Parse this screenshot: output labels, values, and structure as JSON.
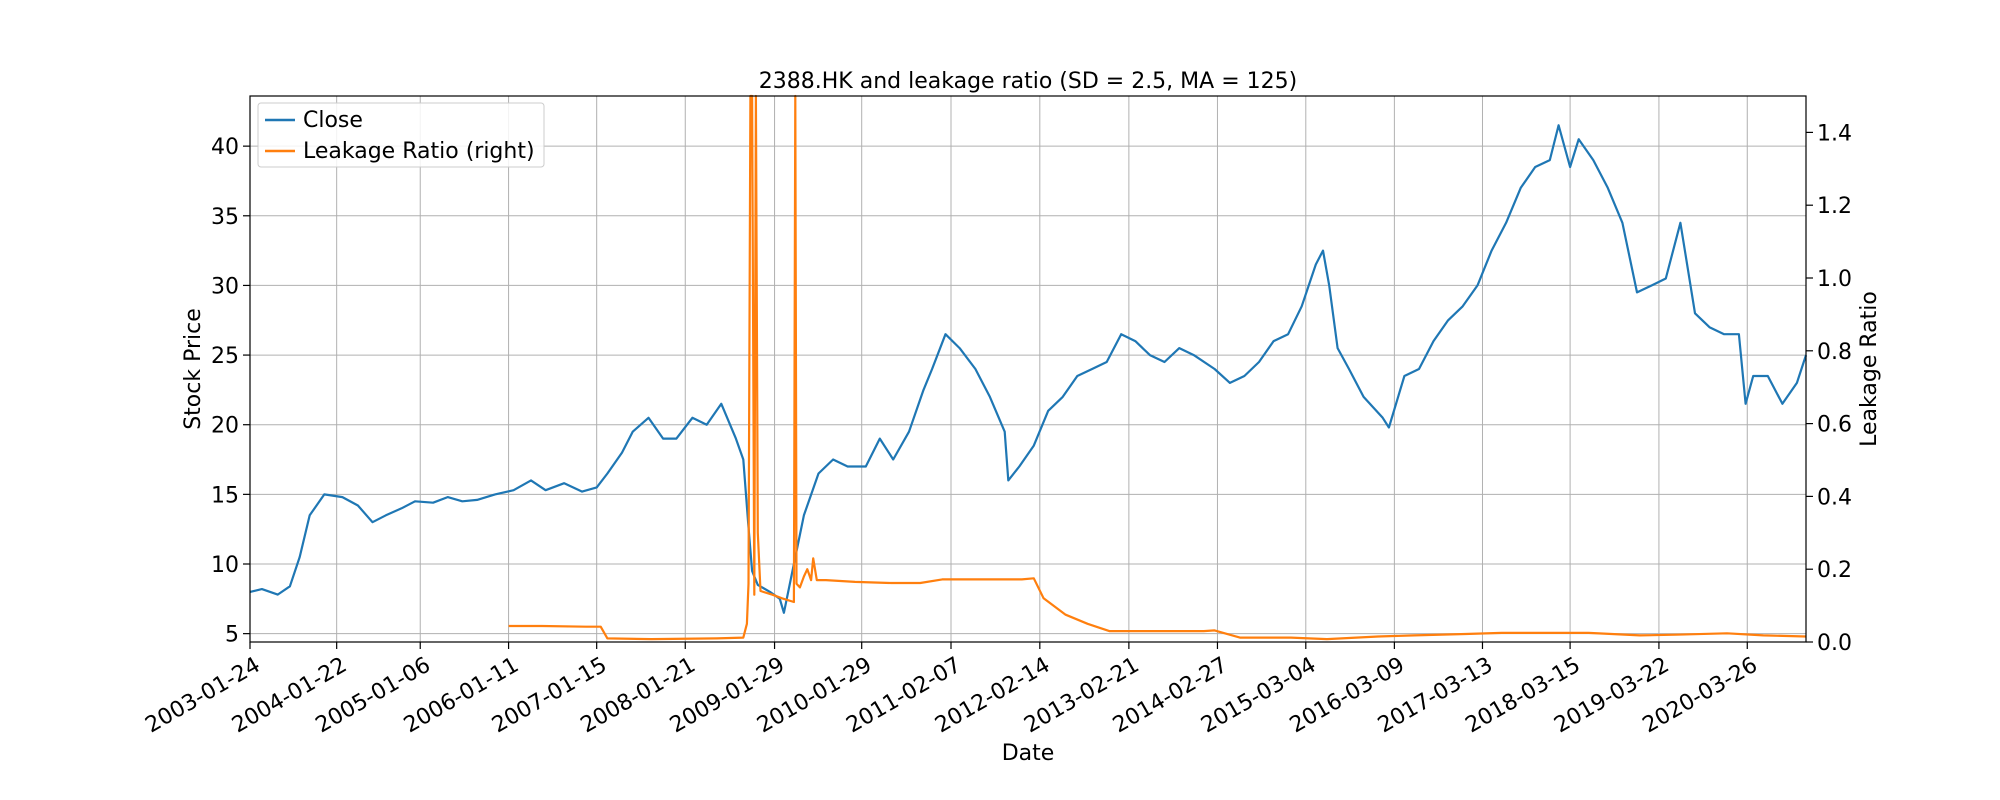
{
  "chart_data": {
    "type": "line",
    "title": "2388.HK and leakage ratio (SD = 2.5, MA = 125)",
    "xlabel": "Date",
    "ylabel": "Stock Price",
    "ylabel_right": "Leakage Ratio",
    "xlim": [
      "2003-01-24",
      "2020-11-27"
    ],
    "ylim": [
      4.4,
      43.6
    ],
    "ylim_right": [
      0,
      1.5
    ],
    "grid": true,
    "legend_position": "upper-left",
    "x_ticks": [
      "2003-01-24",
      "2004-01-22",
      "2005-01-06",
      "2006-01-11",
      "2007-01-15",
      "2008-01-21",
      "2009-01-29",
      "2010-01-29",
      "2011-02-07",
      "2012-02-14",
      "2013-02-21",
      "2014-02-27",
      "2015-03-04",
      "2016-03-09",
      "2017-03-13",
      "2018-03-15",
      "2019-03-22",
      "2020-03-26"
    ],
    "y_ticks": [
      5,
      10,
      15,
      20,
      25,
      30,
      35,
      40
    ],
    "y_ticks_right": [
      "0.0",
      "0.2",
      "0.4",
      "0.6",
      "0.8",
      "1.0",
      "1.2",
      "1.4"
    ],
    "series": [
      {
        "name": "Close",
        "axis": "left",
        "color": "#1f77b4",
        "x": [
          "2003-01-24",
          "2003-03-15",
          "2003-05-20",
          "2003-07-10",
          "2003-08-20",
          "2003-10-01",
          "2003-12-01",
          "2004-02-15",
          "2004-04-20",
          "2004-06-20",
          "2004-08-15",
          "2004-10-20",
          "2004-12-15",
          "2005-03-01",
          "2005-05-01",
          "2005-07-01",
          "2005-09-01",
          "2005-11-15",
          "2006-02-01",
          "2006-04-15",
          "2006-06-15",
          "2006-09-01",
          "2006-11-15",
          "2007-01-15",
          "2007-03-01",
          "2007-05-01",
          "2007-06-15",
          "2007-08-20",
          "2007-10-20",
          "2007-12-15",
          "2008-02-20",
          "2008-04-20",
          "2008-06-20",
          "2008-08-20",
          "2008-09-20",
          "2008-10-10",
          "2008-10-27",
          "2008-11-20",
          "2009-01-10",
          "2009-02-20",
          "2009-03-09",
          "2009-04-20",
          "2009-06-01",
          "2009-08-01",
          "2009-10-01",
          "2009-12-01",
          "2010-02-15",
          "2010-04-15",
          "2010-06-10",
          "2010-08-15",
          "2010-10-15",
          "2010-11-20",
          "2011-01-15",
          "2011-03-15",
          "2011-05-20",
          "2011-07-20",
          "2011-09-20",
          "2011-10-05",
          "2011-11-20",
          "2012-01-20",
          "2012-03-20",
          "2012-05-20",
          "2012-07-20",
          "2012-09-20",
          "2012-11-20",
          "2013-01-20",
          "2013-03-20",
          "2013-05-20",
          "2013-07-20",
          "2013-09-20",
          "2013-11-20",
          "2014-02-15",
          "2014-04-20",
          "2014-06-20",
          "2014-08-20",
          "2014-10-20",
          "2014-12-20",
          "2015-02-15",
          "2015-04-15",
          "2015-05-15",
          "2015-06-10",
          "2015-07-15",
          "2015-09-01",
          "2015-11-01",
          "2016-01-20",
          "2016-02-15",
          "2016-04-20",
          "2016-06-20",
          "2016-08-20",
          "2016-10-20",
          "2016-12-20",
          "2017-02-20",
          "2017-04-20",
          "2017-06-20",
          "2017-08-20",
          "2017-10-20",
          "2017-12-20",
          "2018-01-26",
          "2018-03-15",
          "2018-04-20",
          "2018-06-20",
          "2018-08-20",
          "2018-10-20",
          "2018-12-20",
          "2019-02-20",
          "2019-04-20",
          "2019-06-20",
          "2019-08-20",
          "2019-10-20",
          "2019-12-20",
          "2020-02-20",
          "2020-03-19",
          "2020-04-20",
          "2020-06-20",
          "2020-08-20",
          "2020-10-20",
          "2020-11-27"
        ],
        "y": [
          8.0,
          8.2,
          7.8,
          8.4,
          10.5,
          13.5,
          15.0,
          14.8,
          14.2,
          13.0,
          13.5,
          14.0,
          14.5,
          14.4,
          14.8,
          14.5,
          14.6,
          15.0,
          15.3,
          16.0,
          15.3,
          15.8,
          15.2,
          15.5,
          16.5,
          18.0,
          19.5,
          20.5,
          19.0,
          19.0,
          20.5,
          20.0,
          21.5,
          19.0,
          17.5,
          13.0,
          9.5,
          8.5,
          8.0,
          7.5,
          6.5,
          10.0,
          13.5,
          16.5,
          17.5,
          17.0,
          17.0,
          19.0,
          17.5,
          19.5,
          22.5,
          24.0,
          26.5,
          25.5,
          24.0,
          22.0,
          19.5,
          16.0,
          17.0,
          18.5,
          21.0,
          22.0,
          23.5,
          24.0,
          24.5,
          26.5,
          26.0,
          25.0,
          24.5,
          25.5,
          25.0,
          24.0,
          23.0,
          23.5,
          24.5,
          26.0,
          26.5,
          28.5,
          31.5,
          32.5,
          30.0,
          25.5,
          24.0,
          22.0,
          20.5,
          19.8,
          23.5,
          24.0,
          26.0,
          27.5,
          28.5,
          30.0,
          32.5,
          34.5,
          37.0,
          38.5,
          39.0,
          41.5,
          38.5,
          40.5,
          39.0,
          37.0,
          34.5,
          29.5,
          30.0,
          30.5,
          34.5,
          28.0,
          27.0,
          26.5,
          26.5,
          21.5,
          23.5,
          23.5,
          21.5,
          23.0,
          25.0
        ]
      },
      {
        "name": "Leakage Ratio (right)",
        "axis": "right",
        "color": "#ff7f0e",
        "x": [
          "2006-01-11",
          "2006-06-01",
          "2006-12-01",
          "2007-02-01",
          "2007-03-01",
          "2007-09-01",
          "2008-06-01",
          "2008-09-20",
          "2008-10-05",
          "2008-10-12",
          "2008-10-20",
          "2008-10-27",
          "2008-11-05",
          "2008-11-12",
          "2008-11-20",
          "2008-12-01",
          "2009-01-20",
          "2009-03-01",
          "2009-04-20",
          "2009-04-26",
          "2009-05-01",
          "2009-05-15",
          "2009-06-01",
          "2009-06-15",
          "2009-07-01",
          "2009-07-10",
          "2009-07-25",
          "2009-09-01",
          "2010-01-01",
          "2010-06-01",
          "2010-10-01",
          "2011-01-01",
          "2011-07-01",
          "2011-12-01",
          "2012-01-20",
          "2012-03-01",
          "2012-06-01",
          "2012-09-01",
          "2012-12-01",
          "2013-04-01",
          "2014-01-01",
          "2014-02-15",
          "2014-06-01",
          "2015-01-01",
          "2015-06-01",
          "2016-01-01",
          "2016-06-01",
          "2017-01-01",
          "2017-06-01",
          "2018-01-01",
          "2018-06-01",
          "2019-01-01",
          "2019-06-01",
          "2020-01-01",
          "2020-06-01",
          "2020-11-27"
        ],
        "y": [
          0.044,
          0.044,
          0.042,
          0.042,
          0.01,
          0.008,
          0.01,
          0.012,
          0.05,
          0.16,
          1.5,
          1.5,
          0.13,
          1.5,
          0.3,
          0.14,
          0.13,
          0.12,
          0.11,
          1.5,
          0.16,
          0.15,
          0.18,
          0.2,
          0.17,
          0.23,
          0.17,
          0.17,
          0.165,
          0.162,
          0.162,
          0.172,
          0.172,
          0.172,
          0.175,
          0.12,
          0.075,
          0.05,
          0.03,
          0.03,
          0.03,
          0.032,
          0.012,
          0.012,
          0.008,
          0.015,
          0.018,
          0.022,
          0.025,
          0.025,
          0.025,
          0.018,
          0.02,
          0.024,
          0.018,
          0.015
        ]
      }
    ]
  }
}
